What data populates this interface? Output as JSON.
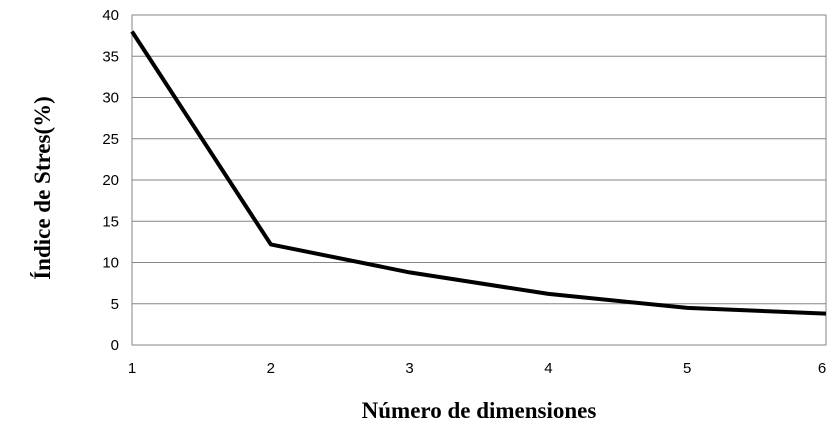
{
  "chart_data": {
    "type": "line",
    "title": "",
    "xlabel": "Número de dimensiones",
    "ylabel": "Índice de Stres(%)",
    "x": [
      1,
      2,
      3,
      4,
      5,
      6
    ],
    "series": [
      {
        "values": [
          38,
          12.2,
          8.8,
          6.2,
          4.5,
          3.8
        ]
      }
    ],
    "xticks": [
      "1",
      "2",
      "3",
      "4",
      "5",
      "6"
    ],
    "yticks": [
      "0",
      "5",
      "10",
      "15",
      "20",
      "25",
      "30",
      "35",
      "40"
    ],
    "xlim": [
      1,
      6
    ],
    "ylim": [
      0,
      40
    ],
    "grid": "horizontal",
    "legend": "none",
    "line_color": "#000000",
    "grid_color": "#868686"
  }
}
